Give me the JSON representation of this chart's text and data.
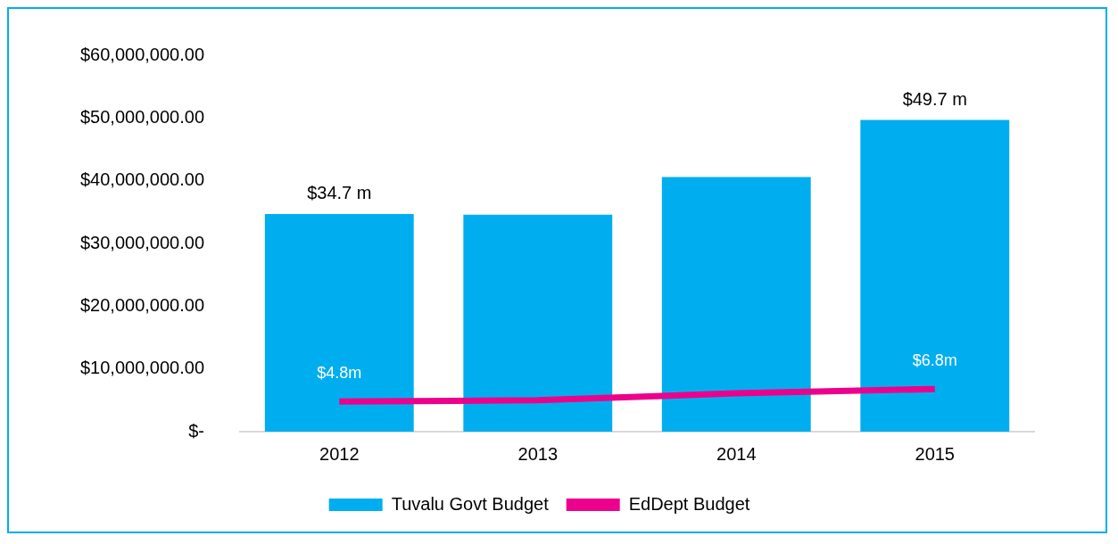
{
  "chart_data": {
    "type": "bar",
    "categories": [
      "2012",
      "2013",
      "2014",
      "2015"
    ],
    "series": [
      {
        "name": "Tuvalu Govt Budget",
        "color": "#00aeef",
        "values": [
          34700000,
          34600000,
          40600000,
          49700000
        ],
        "value_labels": [
          "$34.7 m",
          null,
          null,
          "$49.7 m"
        ]
      },
      {
        "name": "EdDept Budget",
        "type": "line",
        "color": "#ec008c",
        "values": [
          4800000,
          5000000,
          6100000,
          6800000
        ],
        "value_labels": [
          "$4.8m",
          null,
          null,
          "$6.8m"
        ]
      }
    ],
    "ylim": [
      0,
      60000000
    ],
    "yticks": [
      {
        "value": 0,
        "label": "$-"
      },
      {
        "value": 10000000,
        "label": "$10,000,000.00"
      },
      {
        "value": 20000000,
        "label": "$20,000,000.00"
      },
      {
        "value": 30000000,
        "label": "$30,000,000.00"
      },
      {
        "value": 40000000,
        "label": "$40,000,000.00"
      },
      {
        "value": 50000000,
        "label": "$50,000,000.00"
      },
      {
        "value": 60000000,
        "label": "$60,000,000.00"
      }
    ],
    "grid": false,
    "legend": "bottom",
    "marker": "none"
  }
}
